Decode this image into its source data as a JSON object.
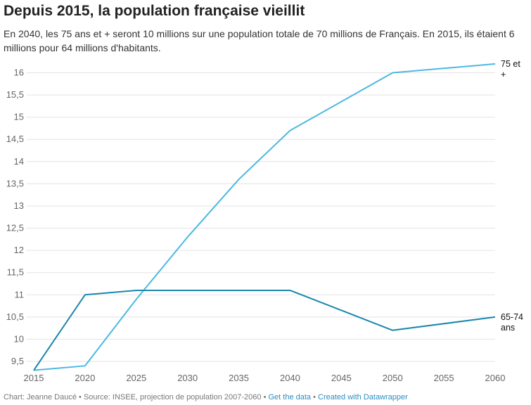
{
  "title": "Depuis 2015, la population française vieillit",
  "description": "En 2040, les 75 ans et + seront 10 millions sur une population totale de 70 millions de Français. En 2015, ils étaient 6 millions pour 64 millions d'habitants.",
  "footer": {
    "chart_by": "Chart: Jeanne Daucé",
    "source": "Source: INSEE, projection de population 2007-2060",
    "get_data": "Get the data",
    "created_with": "Created with Datawrapper",
    "separator": "•"
  },
  "colors": {
    "s75": "#4cb8e3",
    "s65": "#1a86ad",
    "grid": "#e3e3e3"
  },
  "chart_data": {
    "type": "line",
    "title": "Depuis 2015, la population française vieillit",
    "xlabel": "",
    "ylabel": "",
    "xlim": [
      2015,
      2060
    ],
    "ylim": [
      9.3,
      16.2
    ],
    "x_ticks": [
      "2015",
      "2020",
      "2025",
      "2030",
      "2035",
      "2040",
      "2045",
      "2050",
      "2055",
      "2060"
    ],
    "y_ticks": [
      "9,5",
      "10",
      "10,5",
      "11",
      "11,5",
      "12",
      "12,5",
      "13",
      "13,5",
      "14",
      "14,5",
      "15",
      "15,5",
      "16"
    ],
    "grid": true,
    "series": [
      {
        "name": "75 et +",
        "label_lines": [
          "75 et",
          "+"
        ],
        "x": [
          2015,
          2020,
          2025,
          2030,
          2035,
          2040,
          2050,
          2060
        ],
        "values": [
          9.3,
          9.4,
          10.9,
          12.3,
          13.6,
          14.7,
          16.0,
          16.2
        ]
      },
      {
        "name": "65-74 ans",
        "label_lines": [
          "65-74",
          "ans"
        ],
        "x": [
          2015,
          2020,
          2025,
          2040,
          2050,
          2060
        ],
        "values": [
          9.3,
          11.0,
          11.1,
          11.1,
          10.2,
          10.5
        ]
      }
    ]
  }
}
